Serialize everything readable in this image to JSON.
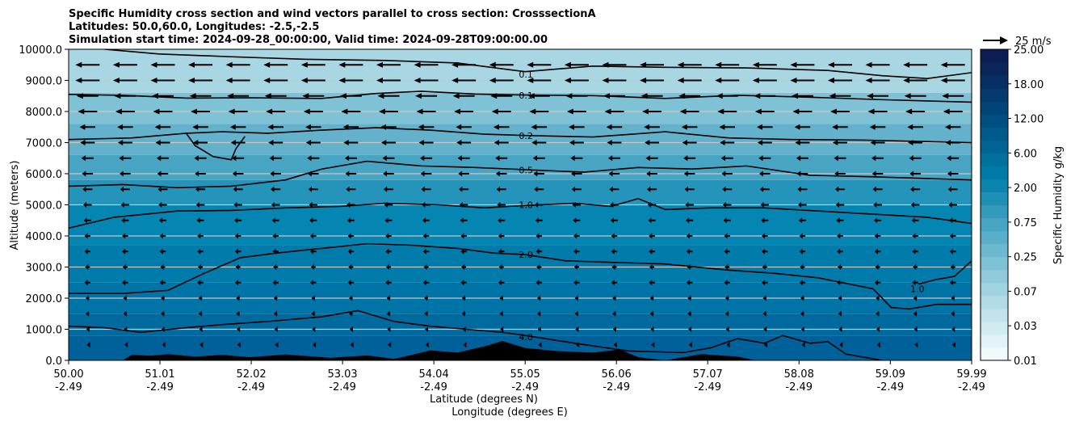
{
  "chart_data": {
    "type": "contour-cross-section",
    "title_lines": [
      "Specific Humidity cross section and wind vectors parallel to cross section: CrosssectionA",
      "Latitudes: 50.0,60.0, Longitudes: -2.5,-2.5",
      "Simulation start time: 2024-09-28_00:00:00, Valid time: 2024-09-28T09:00:00.00"
    ],
    "ylabel": "Altitude (meters)",
    "xlabel_lines": [
      "Latitude (degrees N)",
      "Longitude (degrees E)"
    ],
    "ylim": [
      0,
      10000
    ],
    "yticks": [
      "0.0",
      "1000.0",
      "2000.0",
      "3000.0",
      "4000.0",
      "5000.0",
      "6000.0",
      "7000.0",
      "8000.0",
      "9000.0",
      "10000.0"
    ],
    "x_range": [
      50.0,
      59.99
    ],
    "x_tick_values": [
      50.0,
      51.01,
      52.02,
      53.03,
      54.04,
      55.05,
      56.06,
      57.07,
      58.08,
      59.09,
      59.99
    ],
    "xticks_lat": [
      "50.00",
      "51.01",
      "52.02",
      "53.03",
      "54.04",
      "55.05",
      "56.06",
      "57.07",
      "58.08",
      "59.09",
      "59.99"
    ],
    "xticks_lon": [
      "-2.49",
      "-2.49",
      "-2.49",
      "-2.49",
      "-2.49",
      "-2.49",
      "-2.49",
      "-2.49",
      "-2.49",
      "-2.49",
      "-2.49"
    ],
    "grid": "horizontal",
    "colorbar": {
      "label": "Specific Humidity g/kg",
      "ticks": [
        "0.01",
        "0.03",
        "0.07",
        "0.25",
        "0.75",
        "2.00",
        "6.00",
        "12.00",
        "18.00",
        "25.00"
      ],
      "levels": [
        "0.01",
        "0.02",
        "0.03",
        "0.05",
        "0.07",
        "0.1",
        "0.15",
        "0.25",
        "0.35",
        "0.5",
        "0.75",
        "1.0",
        "1.5",
        "2.0",
        "3.0",
        "4.0",
        "6.0",
        "8.0",
        "10.0",
        "12.0",
        "15.0",
        "18.0",
        "22.0",
        "25.0"
      ],
      "colors": [
        "#f1f9fb",
        "#e2f2f6",
        "#d2ebf1",
        "#c2e3ec",
        "#b2dbe6",
        "#a1d3e1",
        "#90cadb",
        "#7fc1d5",
        "#6db8cf",
        "#5aaec9",
        "#47a4c2",
        "#339abc",
        "#1e8fb5",
        "#0b84ad",
        "#007aa7",
        "#00709f",
        "#006596",
        "#005a8c",
        "#004f82",
        "#034478",
        "#06396d",
        "#082f63",
        "#0a2559",
        "#0b1d52"
      ]
    },
    "humidity_background": [
      {
        "z_range": [
          0,
          800
        ],
        "color": "#00609a"
      },
      {
        "z_range": [
          800,
          1500
        ],
        "color": "#006a9f"
      },
      {
        "z_range": [
          1500,
          2500
        ],
        "color": "#0074a6"
      },
      {
        "z_range": [
          2500,
          3700
        ],
        "color": "#007baa"
      },
      {
        "z_range": [
          3700,
          5000
        ],
        "color": "#0585b1"
      },
      {
        "z_range": [
          5000,
          5800
        ],
        "color": "#2594bb"
      },
      {
        "z_range": [
          5800,
          6600
        ],
        "color": "#47a4c2"
      },
      {
        "z_range": [
          6600,
          7600
        ],
        "color": "#63b1cb"
      },
      {
        "z_range": [
          7600,
          8600
        ],
        "color": "#80c2d5"
      },
      {
        "z_range": [
          8600,
          10000
        ],
        "color": "#a8d6e2"
      }
    ],
    "contours": [
      {
        "label": "0.1",
        "label_pos": [
          55.05,
          9200
        ],
        "points": [
          [
            50.4,
            10000
          ],
          [
            51.0,
            9850
          ],
          [
            51.8,
            9760
          ],
          [
            52.6,
            9680
          ],
          [
            53.5,
            9640
          ],
          [
            54.3,
            9560
          ],
          [
            55.05,
            9280
          ],
          [
            55.8,
            9460
          ],
          [
            56.6,
            9420
          ],
          [
            57.5,
            9400
          ],
          [
            58.4,
            9320
          ],
          [
            59.0,
            9150
          ],
          [
            59.5,
            9060
          ],
          [
            59.99,
            9250
          ]
        ]
      },
      {
        "label": "0.1",
        "label_pos": [
          55.05,
          8520
        ],
        "points": [
          [
            50.0,
            8550
          ],
          [
            50.6,
            8520
          ],
          [
            51.3,
            8430
          ],
          [
            52.0,
            8440
          ],
          [
            52.8,
            8420
          ],
          [
            53.4,
            8580
          ],
          [
            53.9,
            8650
          ],
          [
            54.5,
            8560
          ],
          [
            55.05,
            8530
          ],
          [
            55.8,
            8510
          ],
          [
            56.6,
            8420
          ],
          [
            57.4,
            8520
          ],
          [
            58.2,
            8460
          ],
          [
            59.0,
            8380
          ],
          [
            59.99,
            8300
          ]
        ]
      },
      {
        "label": "0.2",
        "label_pos": [
          55.05,
          7220
        ],
        "points": [
          [
            50.0,
            7100
          ],
          [
            50.7,
            7150
          ],
          [
            51.3,
            7300
          ],
          [
            51.7,
            7350
          ],
          [
            52.2,
            7300
          ],
          [
            52.8,
            7400
          ],
          [
            53.4,
            7480
          ],
          [
            54.0,
            7400
          ],
          [
            54.6,
            7270
          ],
          [
            55.05,
            7230
          ],
          [
            55.8,
            7180
          ],
          [
            56.6,
            7350
          ],
          [
            57.3,
            7150
          ],
          [
            58.0,
            7100
          ],
          [
            58.8,
            7080
          ],
          [
            59.99,
            7000
          ]
        ]
      },
      {
        "label": "",
        "label_pos": null,
        "points": [
          [
            51.3,
            7300
          ],
          [
            51.4,
            6900
          ],
          [
            51.6,
            6550
          ],
          [
            51.8,
            6450
          ],
          [
            51.85,
            6800
          ],
          [
            51.95,
            7200
          ]
        ]
      },
      {
        "label": "0.5",
        "label_pos": [
          55.05,
          6120
        ],
        "points": [
          [
            50.0,
            5600
          ],
          [
            50.6,
            5650
          ],
          [
            51.2,
            5550
          ],
          [
            51.8,
            5600
          ],
          [
            52.4,
            5800
          ],
          [
            52.8,
            6150
          ],
          [
            53.3,
            6400
          ],
          [
            53.9,
            6250
          ],
          [
            54.5,
            6200
          ],
          [
            55.05,
            6130
          ],
          [
            55.7,
            6050
          ],
          [
            56.3,
            6200
          ],
          [
            56.9,
            6150
          ],
          [
            57.5,
            6250
          ],
          [
            58.2,
            5950
          ],
          [
            58.9,
            5900
          ],
          [
            59.99,
            5800
          ]
        ]
      },
      {
        "label": "1.0",
        "label_pos": [
          55.05,
          5000
        ],
        "points": [
          [
            50.0,
            4250
          ],
          [
            50.5,
            4600
          ],
          [
            51.2,
            4800
          ],
          [
            51.8,
            4820
          ],
          [
            52.4,
            4900
          ],
          [
            53.0,
            4950
          ],
          [
            53.5,
            5050
          ],
          [
            54.1,
            5000
          ],
          [
            54.6,
            4900
          ],
          [
            55.05,
            4980
          ],
          [
            55.6,
            5050
          ],
          [
            56.0,
            4950
          ],
          [
            56.3,
            5200
          ],
          [
            56.6,
            4850
          ],
          [
            57.1,
            4900
          ],
          [
            57.7,
            4900
          ],
          [
            58.3,
            4800
          ],
          [
            58.9,
            4700
          ],
          [
            59.5,
            4600
          ],
          [
            59.99,
            4400
          ]
        ]
      },
      {
        "label": "2.0",
        "label_pos": [
          55.05,
          3400
        ],
        "points": [
          [
            50.0,
            2150
          ],
          [
            50.6,
            2150
          ],
          [
            51.1,
            2250
          ],
          [
            51.5,
            2800
          ],
          [
            51.9,
            3300
          ],
          [
            52.3,
            3450
          ],
          [
            52.8,
            3600
          ],
          [
            53.3,
            3750
          ],
          [
            53.8,
            3700
          ],
          [
            54.3,
            3600
          ],
          [
            54.7,
            3450
          ],
          [
            55.05,
            3400
          ],
          [
            55.5,
            3200
          ],
          [
            56.0,
            3150
          ],
          [
            56.6,
            3100
          ],
          [
            57.3,
            2900
          ],
          [
            57.8,
            2800
          ],
          [
            58.3,
            2650
          ],
          [
            58.9,
            2300
          ],
          [
            59.1,
            1700
          ],
          [
            59.3,
            1650
          ],
          [
            59.6,
            1800
          ],
          [
            59.99,
            1800
          ]
        ]
      },
      {
        "label": "1.0",
        "label_pos": [
          59.38,
          2300
        ],
        "points": [
          [
            59.4,
            2450
          ],
          [
            59.6,
            2600
          ],
          [
            59.8,
            2700
          ],
          [
            59.99,
            3200
          ]
        ]
      },
      {
        "label": "4.0",
        "label_pos": [
          55.05,
          750
        ],
        "points": [
          [
            50.0,
            1100
          ],
          [
            50.4,
            1050
          ],
          [
            50.8,
            900
          ],
          [
            51.3,
            1050
          ],
          [
            51.7,
            1150
          ],
          [
            52.2,
            1250
          ],
          [
            52.8,
            1400
          ],
          [
            53.2,
            1600
          ],
          [
            53.6,
            1250
          ],
          [
            54.0,
            1100
          ],
          [
            54.4,
            1000
          ],
          [
            54.8,
            900
          ],
          [
            55.05,
            800
          ],
          [
            55.6,
            550
          ],
          [
            56.2,
            300
          ],
          [
            56.8,
            250
          ],
          [
            57.1,
            400
          ],
          [
            57.4,
            700
          ],
          [
            57.7,
            550
          ],
          [
            57.9,
            800
          ],
          [
            58.2,
            550
          ],
          [
            58.4,
            600
          ],
          [
            58.6,
            200
          ],
          [
            59.0,
            0
          ]
        ]
      }
    ],
    "terrain": [
      [
        50.6,
        0
      ],
      [
        50.7,
        180
      ],
      [
        50.9,
        150
      ],
      [
        51.1,
        200
      ],
      [
        51.4,
        120
      ],
      [
        51.7,
        180
      ],
      [
        52.0,
        100
      ],
      [
        52.4,
        190
      ],
      [
        52.9,
        80
      ],
      [
        53.3,
        160
      ],
      [
        53.6,
        50
      ],
      [
        53.8,
        180
      ],
      [
        54.0,
        320
      ],
      [
        54.3,
        250
      ],
      [
        54.6,
        450
      ],
      [
        54.8,
        620
      ],
      [
        55.05,
        400
      ],
      [
        55.4,
        300
      ],
      [
        55.8,
        250
      ],
      [
        56.1,
        350
      ],
      [
        56.3,
        100
      ],
      [
        56.6,
        0
      ],
      [
        57.0,
        200
      ],
      [
        57.4,
        120
      ],
      [
        57.6,
        0
      ]
    ],
    "wind": {
      "reference_label": "25 m/s",
      "reference_speed_ms": 25,
      "levels": [
        {
          "z": 9500,
          "speed_ms": -20
        },
        {
          "z": 9000,
          "speed_ms": -20
        },
        {
          "z": 8500,
          "speed_ms": -18
        },
        {
          "z": 8000,
          "speed_ms": -16
        },
        {
          "z": 7500,
          "speed_ms": -13
        },
        {
          "z": 7000,
          "speed_ms": -12
        },
        {
          "z": 6500,
          "speed_ms": -10
        },
        {
          "z": 6000,
          "speed_ms": -9
        },
        {
          "z": 5500,
          "speed_ms": -8
        },
        {
          "z": 5000,
          "speed_ms": -7
        },
        {
          "z": 4500,
          "speed_ms": -6
        },
        {
          "z": 4000,
          "speed_ms": -5
        },
        {
          "z": 3500,
          "speed_ms": -5
        },
        {
          "z": 3000,
          "speed_ms": -4
        },
        {
          "z": 2500,
          "speed_ms": -5
        },
        {
          "z": 2000,
          "speed_ms": -3
        },
        {
          "z": 1500,
          "speed_ms": -3
        },
        {
          "z": 1000,
          "speed_ms": -2
        },
        {
          "z": 500,
          "speed_ms": -1
        }
      ],
      "n_columns": 24
    }
  }
}
